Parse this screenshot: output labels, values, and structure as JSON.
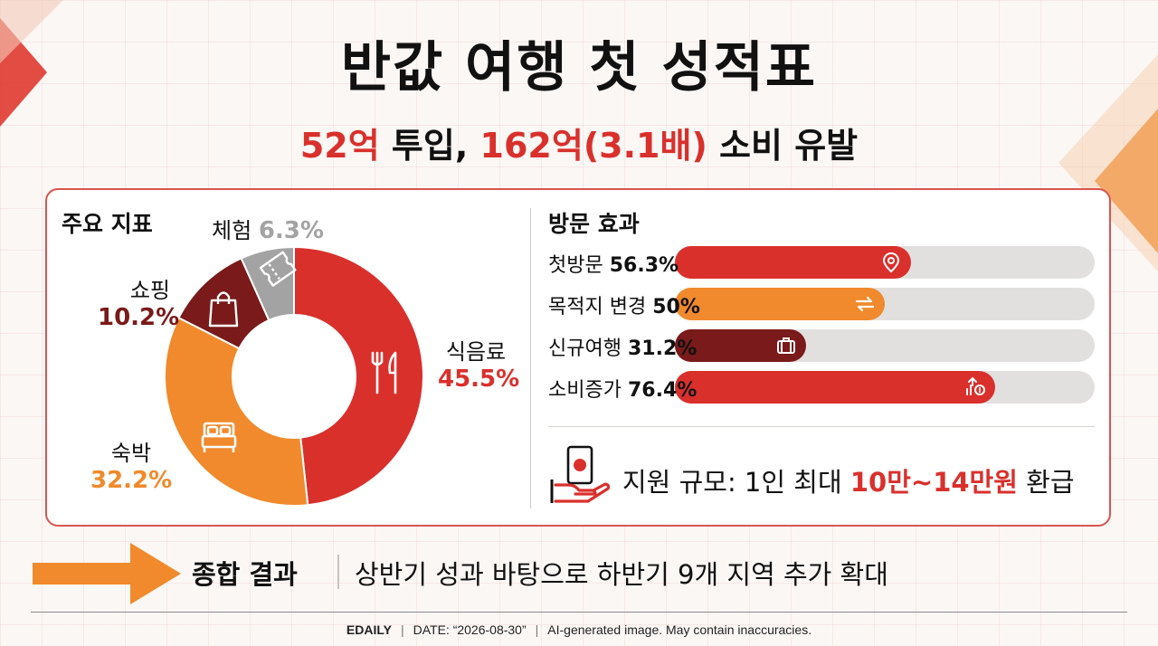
{
  "title": "반값 여행 첫 성적표",
  "subtitle": {
    "part1": "52억",
    "part2": " 투입, ",
    "part3": "162억(3.1배)",
    "part4": " 소비 유발"
  },
  "colors": {
    "red": "#d9302c",
    "orange": "#f08a2c",
    "dark_red": "#7a1a1a",
    "gray": "#a3a3a3",
    "track": "#e2e0df"
  },
  "chart_data": [
    {
      "type": "pie",
      "title": "주요 지표",
      "slices": [
        {
          "label": "식음료",
          "value": 45.5,
          "display": "45.5%",
          "color": "#d9302c",
          "icon": "fork-knife-icon"
        },
        {
          "label": "숙박",
          "value": 32.2,
          "display": "32.2%",
          "color": "#f08a2c",
          "icon": "bed-icon"
        },
        {
          "label": "쇼핑",
          "value": 10.2,
          "display": "10.2%",
          "color": "#7a1a1a",
          "icon": "shopping-bag-icon"
        },
        {
          "label": "체험",
          "value": 6.3,
          "display": "6.3%",
          "color": "#a3a3a3",
          "icon": "ticket-icon"
        }
      ]
    },
    {
      "type": "bar",
      "title": "방문 효과",
      "xlim": [
        0,
        100
      ],
      "bars": [
        {
          "label": "첫방문",
          "value": 56.3,
          "display": "56.3%",
          "color": "#d9302c",
          "icon": "location-pin-icon"
        },
        {
          "label": "목적지 변경",
          "value": 50,
          "display": "50%",
          "color": "#f08a2c",
          "icon": "swap-arrows-icon"
        },
        {
          "label": "신규여행",
          "value": 31.2,
          "display": "31.2%",
          "color": "#7a1a1a",
          "icon": "suitcase-icon"
        },
        {
          "label": "소비증가",
          "value": 76.4,
          "display": "76.4%",
          "color": "#d9302c",
          "icon": "money-growth-icon"
        }
      ]
    }
  ],
  "support": {
    "prefix": "지원 규모: 1인 최대 ",
    "highlight": "10만~14만원",
    "suffix": " 환급",
    "icon": "hand-money-icon"
  },
  "summary": {
    "title": "종합 결과",
    "text": "상반기 성과 바탕으로 하반기 9개 지역 추가 확대"
  },
  "footer": {
    "brand": "EDAILY",
    "date": "DATE: “2026-08-30”",
    "note": "AI-generated image. May contain inaccuracies."
  }
}
